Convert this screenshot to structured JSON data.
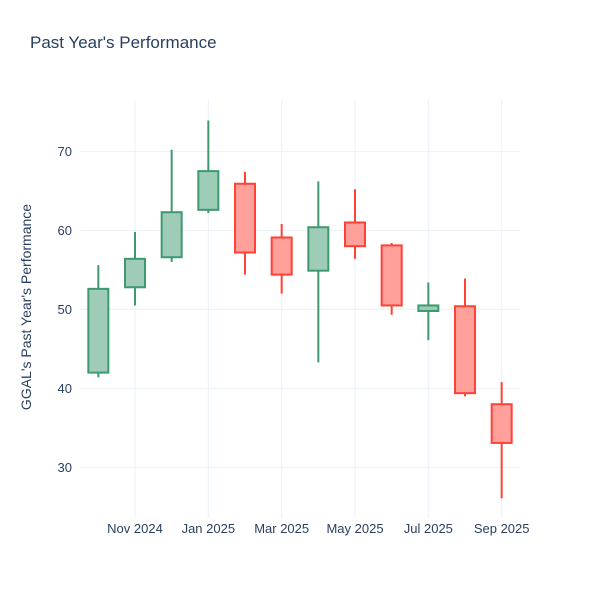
{
  "title": "Past Year's Performance",
  "chart_data": {
    "type": "candlestick",
    "title": "Past Year's Performance",
    "xlabel": "",
    "ylabel": "GGAL's Past Year's Performance",
    "x": [
      "Oct 2024",
      "Nov 2024",
      "Dec 2024",
      "Jan 2025",
      "Feb 2025",
      "Mar 2025",
      "Apr 2025",
      "May 2025",
      "Jun 2025",
      "Jul 2025",
      "Aug 2025",
      "Sep 2025"
    ],
    "open": [
      42.0,
      52.8,
      56.6,
      62.6,
      65.9,
      59.1,
      54.9,
      61.0,
      58.1,
      49.8,
      50.4,
      38.0
    ],
    "high": [
      55.6,
      59.8,
      70.2,
      73.9,
      67.4,
      60.8,
      66.2,
      65.2,
      58.4,
      53.4,
      53.9,
      40.8
    ],
    "low": [
      41.4,
      50.5,
      56.0,
      62.2,
      54.4,
      52.0,
      43.3,
      56.4,
      49.3,
      46.1,
      39.0,
      26.1
    ],
    "close": [
      52.6,
      56.4,
      62.3,
      67.5,
      57.2,
      54.4,
      60.4,
      58.0,
      50.5,
      50.5,
      39.4,
      33.1
    ],
    "x_tick_indices": [
      1,
      3,
      5,
      7,
      9,
      11
    ],
    "x_tick_labels": [
      "Nov 2024",
      "Jan 2025",
      "Mar 2025",
      "May 2025",
      "Jul 2025",
      "Sep 2025"
    ],
    "y_ticks": [
      30,
      40,
      50,
      60,
      70
    ],
    "y_range": [
      23.6,
      76.5
    ],
    "grid": true,
    "legend": "none",
    "colors": {
      "increasing_line": "#3D9970",
      "increasing_fill": "#9ECCB7",
      "decreasing_line": "#FF4136",
      "decreasing_fill": "#FFA09A",
      "grid": "#EBF0F8",
      "text": "#2a3f5f",
      "background": "#ffffff"
    }
  }
}
